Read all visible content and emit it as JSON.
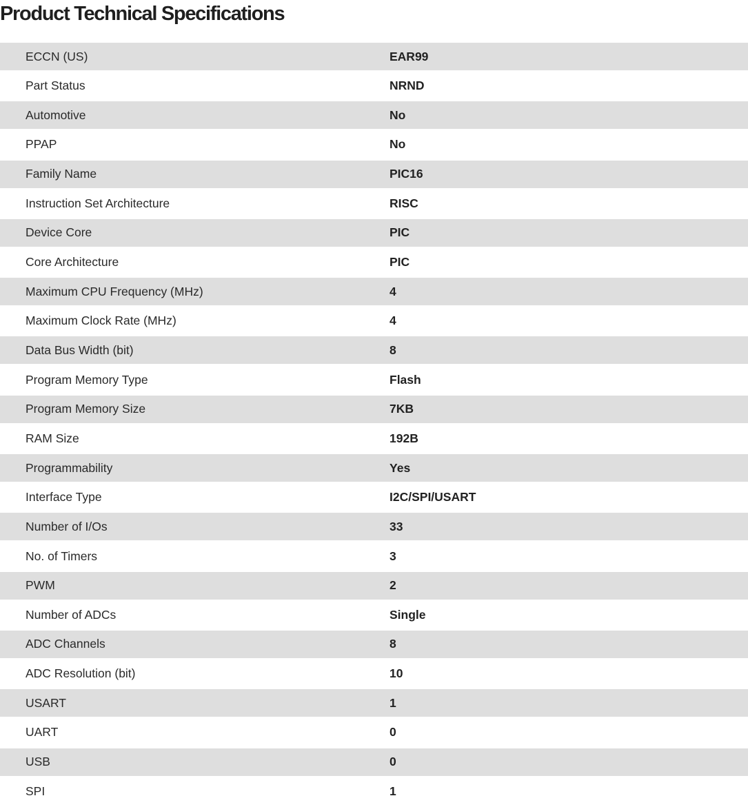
{
  "title": "Product Technical Specifications",
  "specs": [
    {
      "label": "ECCN (US)",
      "value": "EAR99"
    },
    {
      "label": "Part Status",
      "value": "NRND"
    },
    {
      "label": "Automotive",
      "value": "No"
    },
    {
      "label": "PPAP",
      "value": "No"
    },
    {
      "label": "Family Name",
      "value": "PIC16"
    },
    {
      "label": "Instruction Set Architecture",
      "value": "RISC"
    },
    {
      "label": "Device Core",
      "value": "PIC"
    },
    {
      "label": "Core Architecture",
      "value": "PIC"
    },
    {
      "label": "Maximum CPU Frequency (MHz)",
      "value": "4"
    },
    {
      "label": "Maximum Clock Rate (MHz)",
      "value": "4"
    },
    {
      "label": "Data Bus Width (bit)",
      "value": "8"
    },
    {
      "label": "Program Memory Type",
      "value": "Flash"
    },
    {
      "label": "Program Memory Size",
      "value": "7KB"
    },
    {
      "label": "RAM Size",
      "value": "192B"
    },
    {
      "label": "Programmability",
      "value": "Yes"
    },
    {
      "label": "Interface Type",
      "value": "I2C/SPI/USART"
    },
    {
      "label": "Number of I/Os",
      "value": "33"
    },
    {
      "label": "No. of Timers",
      "value": "3"
    },
    {
      "label": "PWM",
      "value": "2"
    },
    {
      "label": "Number of ADCs",
      "value": "Single"
    },
    {
      "label": "ADC Channels",
      "value": "8"
    },
    {
      "label": "ADC Resolution (bit)",
      "value": "10"
    },
    {
      "label": "USART",
      "value": "1"
    },
    {
      "label": "UART",
      "value": "0"
    },
    {
      "label": "USB",
      "value": "0"
    },
    {
      "label": "SPI",
      "value": "1"
    }
  ]
}
